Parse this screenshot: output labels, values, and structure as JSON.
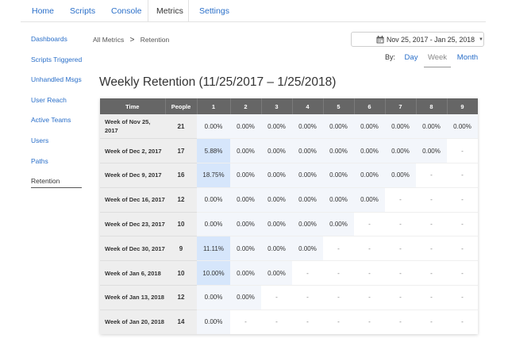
{
  "nav": {
    "tabs": [
      {
        "label": "Home"
      },
      {
        "label": "Scripts"
      },
      {
        "label": "Console"
      },
      {
        "label": "Metrics"
      },
      {
        "label": "Settings"
      }
    ],
    "active": "Metrics"
  },
  "sidebar": {
    "items": [
      {
        "label": "Dashboards"
      },
      {
        "label": "Scripts Triggered"
      },
      {
        "label": "Unhandled Msgs"
      },
      {
        "label": "User Reach"
      },
      {
        "label": "Active Teams"
      },
      {
        "label": "Users"
      },
      {
        "label": "Paths"
      },
      {
        "label": "Retention"
      }
    ],
    "active": "Retention"
  },
  "breadcrumb": {
    "parent": "All Metrics",
    "separator": ">",
    "current": "Retention"
  },
  "datepicker": {
    "label": "Nov 25, 2017 - Jan 25, 2018",
    "icon": "calendar-icon"
  },
  "period": {
    "by_label": "By:",
    "options": [
      "Day",
      "Week",
      "Month"
    ],
    "selected": "Week"
  },
  "heading": "Weekly Retention (11/25/2017 – 1/25/2018)",
  "colors": {
    "link": "#2a6fc9",
    "header_bg": "#666666",
    "highlight": "#d6e6fb",
    "cell_bg": "#f3f6fb"
  },
  "table": {
    "columns": [
      "Time",
      "People",
      "1",
      "2",
      "3",
      "4",
      "5",
      "6",
      "7",
      "8",
      "9"
    ],
    "rows": [
      {
        "label": "Week of Nov 25, 2017",
        "people": "21",
        "values": [
          "0.00%",
          "0.00%",
          "0.00%",
          "0.00%",
          "0.00%",
          "0.00%",
          "0.00%",
          "0.00%",
          "0.00%"
        ]
      },
      {
        "label": "Week of Dec 2, 2017",
        "people": "17",
        "values": [
          "5.88%",
          "0.00%",
          "0.00%",
          "0.00%",
          "0.00%",
          "0.00%",
          "0.00%",
          "0.00%",
          "-"
        ]
      },
      {
        "label": "Week of Dec 9, 2017",
        "people": "16",
        "values": [
          "18.75%",
          "0.00%",
          "0.00%",
          "0.00%",
          "0.00%",
          "0.00%",
          "0.00%",
          "-",
          "-"
        ]
      },
      {
        "label": "Week of Dec 16, 2017",
        "people": "12",
        "values": [
          "0.00%",
          "0.00%",
          "0.00%",
          "0.00%",
          "0.00%",
          "0.00%",
          "-",
          "-",
          "-"
        ]
      },
      {
        "label": "Week of Dec 23, 2017",
        "people": "10",
        "values": [
          "0.00%",
          "0.00%",
          "0.00%",
          "0.00%",
          "0.00%",
          "-",
          "-",
          "-",
          "-"
        ]
      },
      {
        "label": "Week of Dec 30, 2017",
        "people": "9",
        "values": [
          "11.11%",
          "0.00%",
          "0.00%",
          "0.00%",
          "-",
          "-",
          "-",
          "-",
          "-"
        ]
      },
      {
        "label": "Week of Jan 6, 2018",
        "people": "10",
        "values": [
          "10.00%",
          "0.00%",
          "0.00%",
          "-",
          "-",
          "-",
          "-",
          "-",
          "-"
        ]
      },
      {
        "label": "Week of Jan 13, 2018",
        "people": "12",
        "values": [
          "0.00%",
          "0.00%",
          "-",
          "-",
          "-",
          "-",
          "-",
          "-",
          "-"
        ]
      },
      {
        "label": "Week of Jan 20, 2018",
        "people": "14",
        "values": [
          "0.00%",
          "-",
          "-",
          "-",
          "-",
          "-",
          "-",
          "-",
          "-"
        ]
      }
    ]
  }
}
